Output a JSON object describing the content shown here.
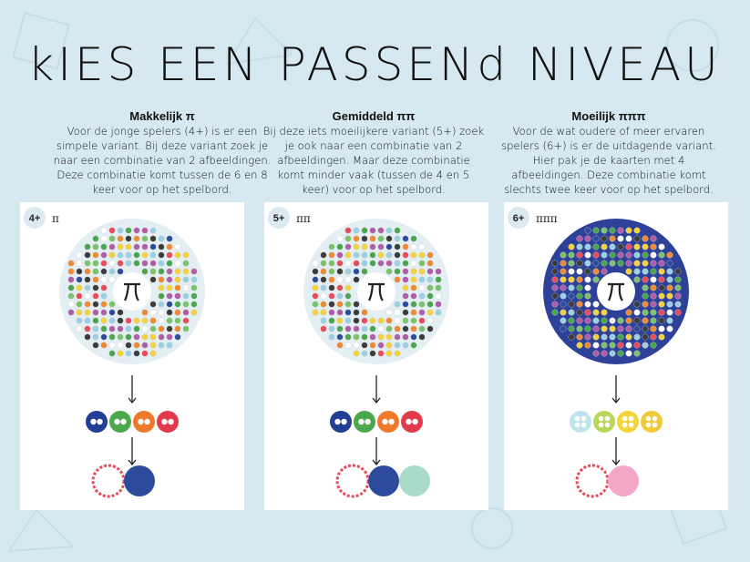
{
  "title": "kIES EEN PASSENd NIVEAU",
  "levels": [
    {
      "heading": "Makkelijk π",
      "lines": [
        "Voor de jonge spelers (4+) is er een",
        "simpele variant. Bij deze variant zoek je",
        "naar een combinatie van 2 afbeeldingen.",
        "Deze combinatie komt tussen de 6 en 8",
        "keer voor op het spelbord."
      ],
      "badge": "4+",
      "pi": "π"
    },
    {
      "heading": "Gemiddeld ππ",
      "lines": [
        "Bij deze iets moeilijkere variant (5+) zoek",
        "je ook naar een combinatie van 2",
        "afbeeldingen. Maar deze combinatie",
        "komt minder vaak (tussen de 4 en 5",
        "keer) voor op het spelbord."
      ],
      "badge": "5+",
      "pi": "ππ"
    },
    {
      "heading": "Moeilijk πππ",
      "lines": [
        "Voor de wat oudere of meer ervaren",
        "spelers (6+) is er de uitdagende variant.",
        "Hier pak je de kaarten met 4",
        "afbeeldingen.  Deze combinatie komt",
        "slechts twee keer voor op het spelbord."
      ],
      "badge": "6+",
      "pi": "πππ"
    }
  ]
}
